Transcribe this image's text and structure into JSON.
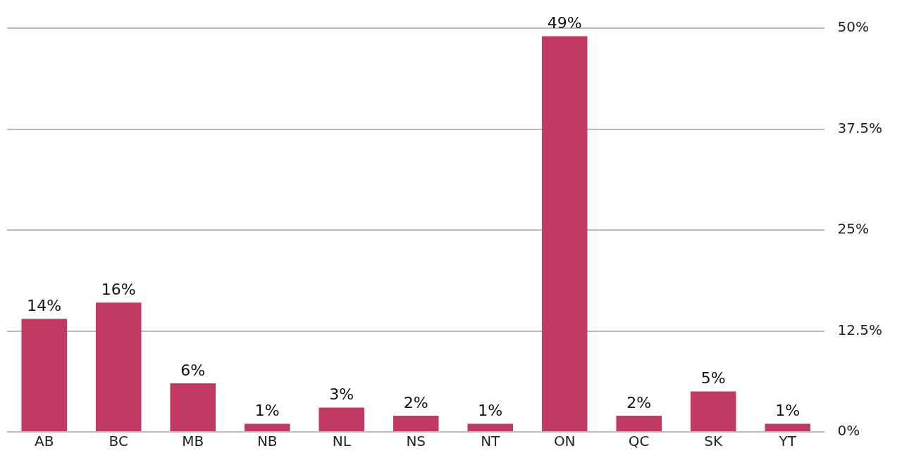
{
  "chart_data": {
    "type": "bar",
    "categories": [
      "AB",
      "BC",
      "MB",
      "NB",
      "NL",
      "NS",
      "NT",
      "ON",
      "QC",
      "SK",
      "YT"
    ],
    "values": [
      14,
      16,
      6,
      1,
      3,
      2,
      1,
      49,
      2,
      5,
      1
    ],
    "value_labels": [
      "14%",
      "16%",
      "6%",
      "1%",
      "3%",
      "2%",
      "1%",
      "49%",
      "2%",
      "5%",
      "1%"
    ],
    "color": "#c23a62",
    "ylim": [
      0,
      50
    ],
    "yticks": [
      {
        "value": 0,
        "label": "0%"
      },
      {
        "value": 12.5,
        "label": "12.5%"
      },
      {
        "value": 25,
        "label": "25%"
      },
      {
        "value": 37.5,
        "label": "37.5%"
      },
      {
        "value": 50,
        "label": "50%"
      }
    ],
    "grid": "y"
  }
}
